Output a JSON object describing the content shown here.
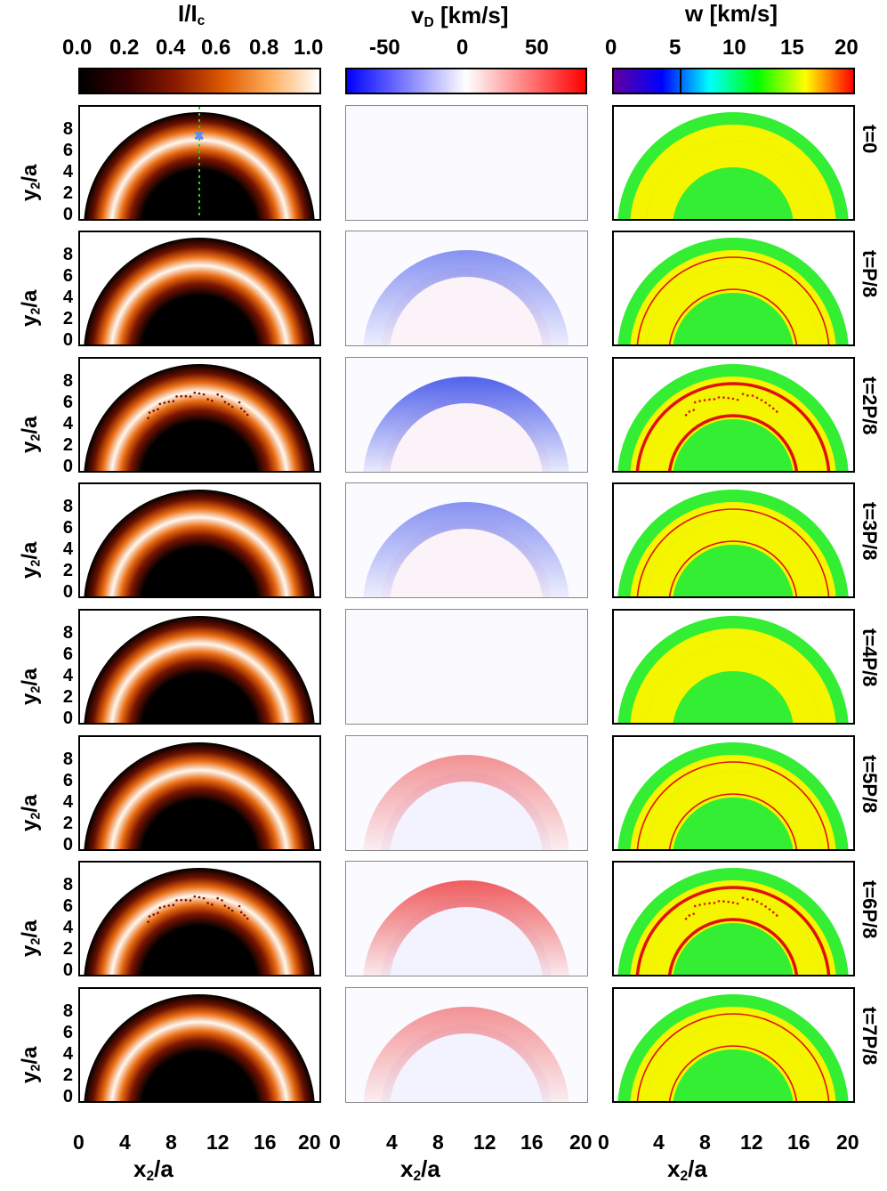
{
  "colorbars": {
    "intensity": {
      "label": "I/I",
      "label_sub": "c",
      "ticks": [
        "0.0",
        "0.2",
        "0.4",
        "0.6",
        "0.8",
        "1.0"
      ]
    },
    "velocity": {
      "label": "v",
      "label_sub": "D",
      "label_unit": " [km/s]",
      "ticks": [
        "-50",
        "0",
        "50"
      ]
    },
    "width": {
      "label": "w [km/s]",
      "ticks": [
        "0",
        "5",
        "10",
        "15",
        "20"
      ]
    }
  },
  "axes": {
    "y_label": "y",
    "y_label_sub": "2",
    "y_label_tail": "/a",
    "y_ticks": [
      "0",
      "2",
      "4",
      "6",
      "8"
    ],
    "x_label": "x",
    "x_label_sub": "2",
    "x_label_tail": "/a",
    "x_ticks_first": [
      "0",
      "4",
      "8",
      "12",
      "16",
      "20"
    ],
    "x_ticks_rest": [
      "0",
      "4",
      "8",
      "12",
      "16",
      "20"
    ]
  },
  "rows": [
    {
      "time_label": "t=0",
      "doppler": 0,
      "width_level": 0
    },
    {
      "time_label": "t=P/8",
      "doppler": -0.55,
      "width_level": 1
    },
    {
      "time_label": "t=2P/8",
      "doppler": -0.8,
      "width_level": 2
    },
    {
      "time_label": "t=3P/8",
      "doppler": -0.55,
      "width_level": 1
    },
    {
      "time_label": "t=4P/8",
      "doppler": 0,
      "width_level": 0
    },
    {
      "time_label": "t=5P/8",
      "doppler": 0.5,
      "width_level": 1
    },
    {
      "time_label": "t=6P/8",
      "doppler": 0.75,
      "width_level": 2
    },
    {
      "time_label": "t=7P/8",
      "doppler": 0.5,
      "width_level": 1
    }
  ],
  "colors": {
    "intensity_scale": [
      "#000000",
      "#3a0000",
      "#8a1a00",
      "#e05a00",
      "#ffb060",
      "#ffffff"
    ],
    "velocity_scale": [
      "#0000ff",
      "#ffffff",
      "#ff0000"
    ],
    "width_scale": [
      "#6000a0",
      "#0000ff",
      "#00ffff",
      "#00ff00",
      "#ffff00",
      "#ff0000"
    ],
    "width_yellow": "#f5f500",
    "width_green": "#33ee33",
    "width_red": "#e01010"
  }
}
